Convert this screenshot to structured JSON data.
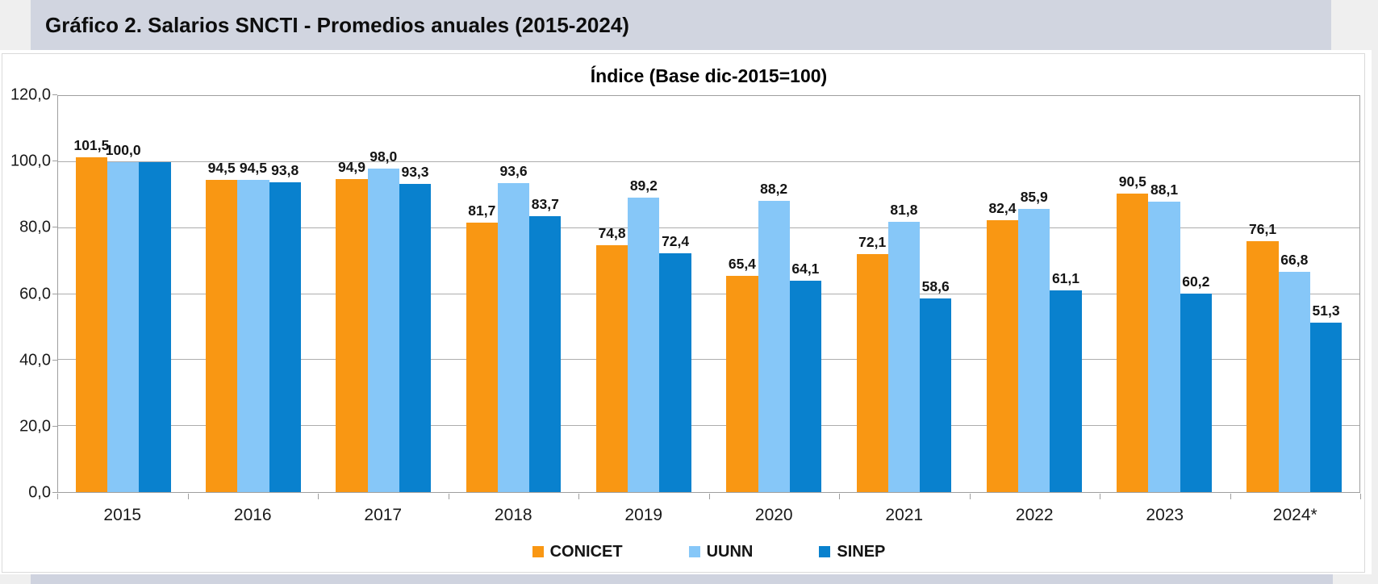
{
  "header": {
    "title": "Gráfico 2. Salarios SNCTI - Promedios anuales (2015-2024)"
  },
  "colors": {
    "banner_bg": "#d1d5e0",
    "bottom_strip_bg": "#cfd3df",
    "margin_bg": "#efefef",
    "gridline": "#adadad"
  },
  "chart_data": {
    "type": "bar",
    "title": "Índice (Base dic-2015=100)",
    "categories": [
      "2015",
      "2016",
      "2017",
      "2018",
      "2019",
      "2020",
      "2021",
      "2022",
      "2023",
      "2024*"
    ],
    "series": [
      {
        "name": "CONICET",
        "color": "#f99713",
        "values": [
          101.5,
          94.5,
          94.9,
          81.7,
          74.8,
          65.4,
          72.1,
          82.4,
          90.5,
          76.1
        ],
        "labels": [
          "101,5",
          "94,5",
          "94,9",
          "81,7",
          "74,8",
          "65,4",
          "72,1",
          "82,4",
          "90,5",
          "76,1"
        ]
      },
      {
        "name": "UUNN",
        "color": "#86c7f8",
        "values": [
          100.0,
          94.5,
          98.0,
          93.6,
          89.2,
          88.2,
          81.8,
          85.9,
          88.1,
          66.8
        ],
        "labels": [
          "100,0",
          "94,5",
          "98,0",
          "93,6",
          "89,2",
          "88,2",
          "81,8",
          "85,9",
          "88,1",
          "66,8"
        ]
      },
      {
        "name": "SINEP",
        "color": "#0981ce",
        "values": [
          100.0,
          93.8,
          93.3,
          83.7,
          72.4,
          64.1,
          58.6,
          61.1,
          60.2,
          51.3
        ],
        "labels": [
          "",
          "93,8",
          "93,3",
          "83,7",
          "72,4",
          "64,1",
          "58,6",
          "61,1",
          "60,2",
          "51,3"
        ]
      }
    ],
    "ylim": [
      0,
      120
    ],
    "ytick_step": 20,
    "ytick_labels": [
      "0,0",
      "20,0",
      "40,0",
      "60,0",
      "80,0",
      "100,0",
      "120,0"
    ],
    "grid": true,
    "legend_position": "bottom"
  }
}
